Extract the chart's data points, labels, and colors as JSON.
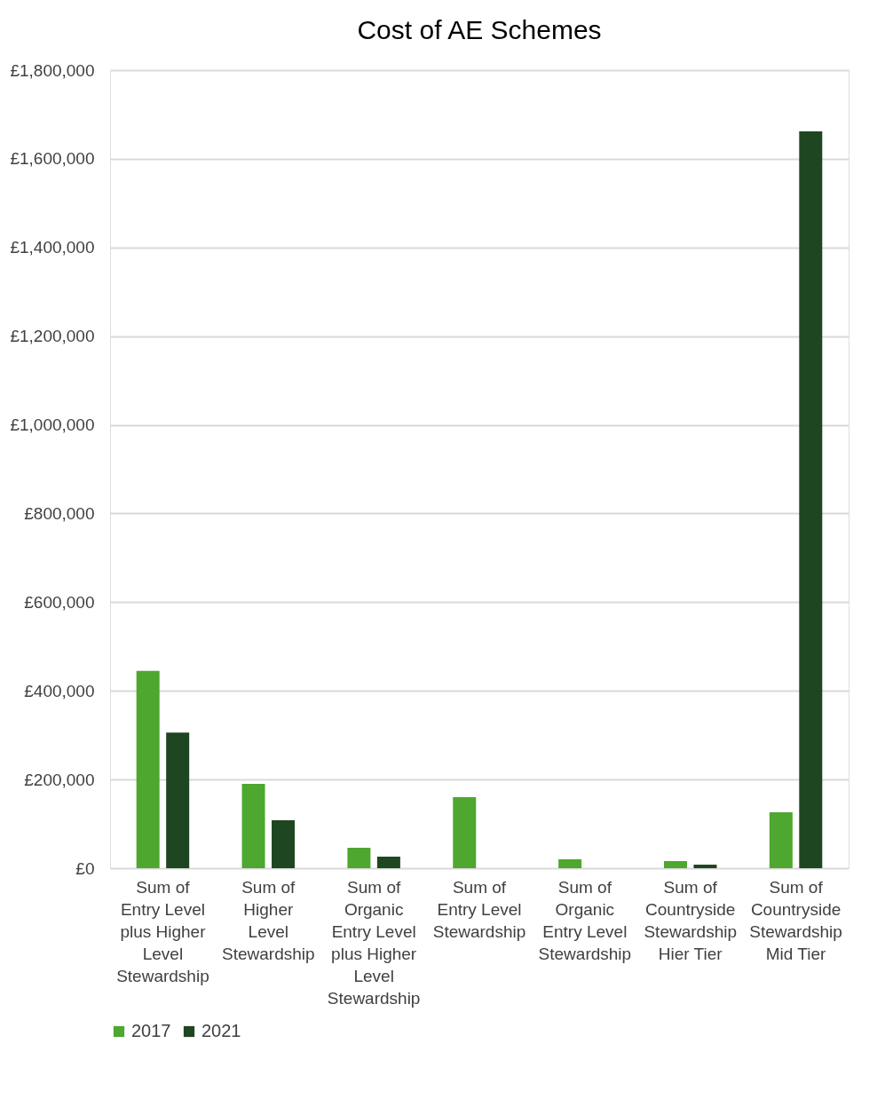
{
  "chart_data": {
    "type": "bar",
    "title": "Cost of AE Schemes",
    "categories": [
      "Sum of Entry Level plus Higher Level Stewardship",
      "Sum of Higher Level Stewardship",
      "Sum of Organic Entry Level plus Higher Level Stewardship",
      "Sum of Entry Level Stewardship",
      "Sum of Organic Entry Level Stewardship",
      "Sum of Countryside Stewardship Hier Tier",
      "Sum of Countryside Stewardship Mid Tier"
    ],
    "series": [
      {
        "name": "2017",
        "color": "#4ea72e",
        "values": [
          445000,
          190000,
          46000,
          160000,
          20000,
          16000,
          126000
        ]
      },
      {
        "name": "2021",
        "color": "#1e4620",
        "values": [
          306000,
          108000,
          26000,
          0,
          0,
          8000,
          1662000
        ]
      }
    ],
    "ylim": [
      0,
      1800000
    ],
    "yticks": [
      {
        "value": 0,
        "label": "£0"
      },
      {
        "value": 200000,
        "label": "£200,000"
      },
      {
        "value": 400000,
        "label": "£400,000"
      },
      {
        "value": 600000,
        "label": "£600,000"
      },
      {
        "value": 800000,
        "label": "£800,000"
      },
      {
        "value": 1000000,
        "label": "£1,000,000"
      },
      {
        "value": 1200000,
        "label": "£1,200,000"
      },
      {
        "value": 1400000,
        "label": "£1,400,000"
      },
      {
        "value": 1600000,
        "label": "£1,600,000"
      },
      {
        "value": 1800000,
        "label": "£1,800,000"
      }
    ],
    "grid": "y",
    "legend": "bottom"
  }
}
